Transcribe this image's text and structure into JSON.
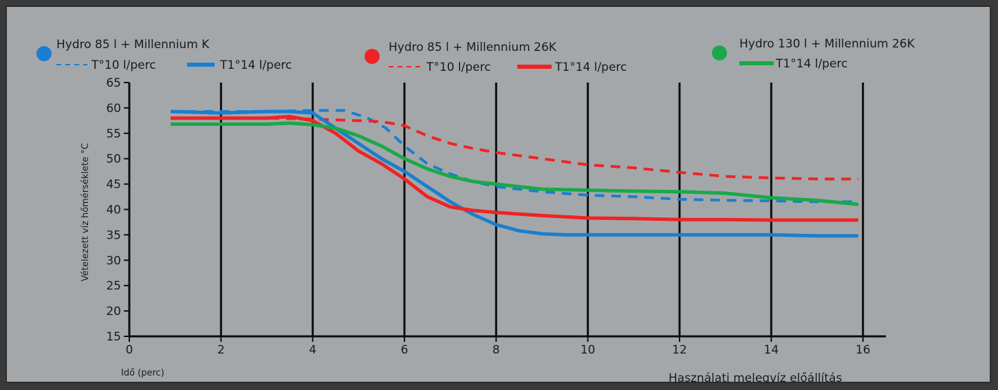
{
  "chart_data": {
    "type": "line",
    "title": "",
    "xlabel": "Idő (perc)",
    "ylabel": "Vételezett víz hőmérséklete °C",
    "footer": "Használati melegvíz előállítás",
    "xlim": [
      0,
      16.5
    ],
    "ylim": [
      15,
      65
    ],
    "x_ticks": [
      0,
      2,
      4,
      6,
      8,
      10,
      12,
      14,
      16
    ],
    "y_ticks": [
      15,
      20,
      25,
      30,
      35,
      40,
      45,
      50,
      55,
      60,
      65
    ],
    "grid": "vertical",
    "legend_groups": [
      {
        "title": "Hydro 85 l + Millennium K",
        "color": "#1a7fd0",
        "entries": [
          {
            "label": "T°10 l/perc",
            "style": "dashed"
          },
          {
            "label": "T1°14 l/perc",
            "style": "solid"
          }
        ]
      },
      {
        "title": "Hydro 85 l + Millennium 26K",
        "color": "#ee2424",
        "entries": [
          {
            "label": "T°10 l/perc",
            "style": "dashed"
          },
          {
            "label": "T1°14 l/perc",
            "style": "solid"
          }
        ]
      },
      {
        "title": "Hydro 130 l + Millennium 26K",
        "color": "#19a94a",
        "entries": [
          {
            "label": "T1°14 l/perc",
            "style": "solid"
          }
        ]
      }
    ],
    "series": [
      {
        "color": "#1a7fd0",
        "style": "dashed",
        "x": [
          0.9,
          2,
          3,
          4,
          4.7,
          5.2,
          5.6,
          6,
          6.5,
          7,
          7.5,
          8,
          9,
          10,
          11,
          12,
          13,
          14,
          15,
          15.9
        ],
        "y": [
          59.3,
          59.3,
          59.3,
          59.5,
          59.5,
          58,
          56,
          52.5,
          49,
          47,
          45.5,
          44.5,
          43.5,
          42.8,
          42.5,
          42,
          41.8,
          41.7,
          41.5,
          41.5
        ]
      },
      {
        "color": "#1a7fd0",
        "style": "solid",
        "x": [
          0.9,
          2,
          3,
          3.5,
          4,
          4.5,
          5,
          5.5,
          6,
          6.5,
          7,
          7.5,
          8,
          8.5,
          9,
          9.5,
          10,
          11,
          12,
          13,
          14,
          15,
          15.9
        ],
        "y": [
          59.3,
          59,
          59.3,
          59.3,
          59,
          56,
          53,
          50,
          47.5,
          44.5,
          41.5,
          39,
          37,
          35.8,
          35.2,
          35,
          35,
          35,
          35,
          35,
          35,
          34.8,
          34.8
        ]
      },
      {
        "color": "#ee2424",
        "style": "dashed",
        "x": [
          0.9,
          2,
          3,
          4,
          5,
          5.5,
          6,
          6.5,
          7,
          7.5,
          8,
          9,
          10,
          11,
          12,
          13,
          14,
          15,
          15.9
        ],
        "y": [
          58,
          58,
          58,
          57.8,
          57.5,
          57.3,
          56.5,
          54.5,
          53,
          52,
          51.2,
          50,
          48.8,
          48.2,
          47.3,
          46.5,
          46.2,
          46,
          46
        ]
      },
      {
        "color": "#ee2424",
        "style": "solid",
        "x": [
          0.9,
          2,
          3,
          3.5,
          4,
          4.5,
          5,
          5.5,
          6,
          6.5,
          7,
          7.5,
          8,
          9,
          10,
          11,
          12,
          13,
          14,
          15,
          15.9
        ],
        "y": [
          58,
          58,
          58,
          58.3,
          57.5,
          55,
          51.5,
          49,
          46,
          42.5,
          40.5,
          39.8,
          39.4,
          38.8,
          38.3,
          38.2,
          38,
          38,
          37.9,
          37.9,
          37.9
        ]
      },
      {
        "color": "#19a94a",
        "style": "solid",
        "x": [
          0.9,
          2,
          3,
          3.5,
          4,
          4.5,
          5,
          5.5,
          6,
          6.5,
          7,
          7.5,
          8,
          9,
          10,
          11,
          12,
          13,
          14,
          15,
          15.9
        ],
        "y": [
          56.8,
          56.8,
          56.8,
          57,
          56.7,
          56,
          54.5,
          52.5,
          50,
          48,
          46.5,
          45.5,
          45,
          44,
          43.8,
          43.6,
          43.5,
          43.2,
          42.3,
          41.8,
          41
        ]
      }
    ]
  }
}
